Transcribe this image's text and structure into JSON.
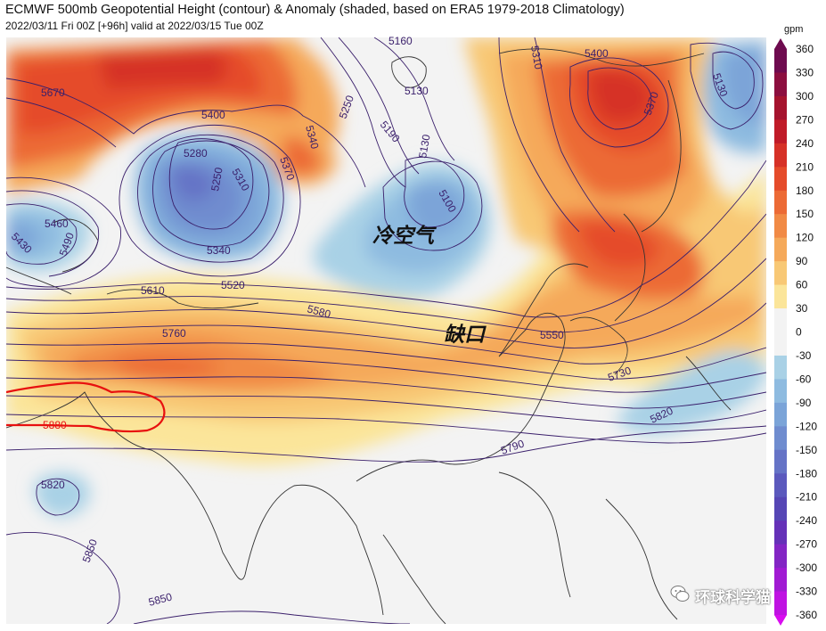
{
  "title": "ECMWF 500mb Geopotential Height (contour) & Anomaly (shaded, based on ERA5 1979-2018 Climatology)",
  "subtitle": "2022/03/11 Fri 00Z [+96h] valid at 2022/03/15 Tue 00Z",
  "colorbar": {
    "unit": "gpm",
    "ticks": [
      "360",
      "330",
      "300",
      "270",
      "240",
      "210",
      "180",
      "150",
      "120",
      "90",
      "60",
      "30",
      "0",
      "-30",
      "-60",
      "-90",
      "-120",
      "-150",
      "-180",
      "-210",
      "-240",
      "-270",
      "-300",
      "-330",
      "-360"
    ],
    "colors": [
      "#6e0b4f",
      "#8c0e3f",
      "#a5132e",
      "#c01b28",
      "#d63127",
      "#e54b2a",
      "#ec6a35",
      "#f18a45",
      "#f5a95a",
      "#f8c875",
      "#fbe59a",
      "#f3f3f3",
      "#f3f3f3",
      "#a9d1e6",
      "#8ebbe0",
      "#7ba4d8",
      "#6f8ccf",
      "#6573c6",
      "#5b59bd",
      "#5646b5",
      "#6531b8",
      "#8325c4",
      "#a11ad3",
      "#bf12e2",
      "#d90cef"
    ]
  },
  "annotations": {
    "cold_air": "冷空气",
    "gap": "缺口"
  },
  "contour_labels": [
    {
      "text": "5670"
    },
    {
      "text": "5400"
    },
    {
      "text": "5280"
    },
    {
      "text": "5310"
    },
    {
      "text": "5250"
    },
    {
      "text": "5340"
    },
    {
      "text": "5370"
    },
    {
      "text": "5340"
    },
    {
      "text": "5250"
    },
    {
      "text": "5190"
    },
    {
      "text": "5130"
    },
    {
      "text": "5130"
    },
    {
      "text": "5100"
    },
    {
      "text": "5160"
    },
    {
      "text": "5310"
    },
    {
      "text": "5400"
    },
    {
      "text": "5370"
    },
    {
      "text": "5130"
    },
    {
      "text": "5460"
    },
    {
      "text": "5430"
    },
    {
      "text": "5490"
    },
    {
      "text": "5610"
    },
    {
      "text": "5520"
    },
    {
      "text": "5580"
    },
    {
      "text": "5760"
    },
    {
      "text": "5550"
    },
    {
      "text": "5730"
    },
    {
      "text": "5820"
    },
    {
      "text": "5790"
    },
    {
      "text": "5820"
    },
    {
      "text": "5850"
    },
    {
      "text": "5850"
    }
  ],
  "subtropical_high_label": "5880",
  "watermark": "环球科学猫"
}
